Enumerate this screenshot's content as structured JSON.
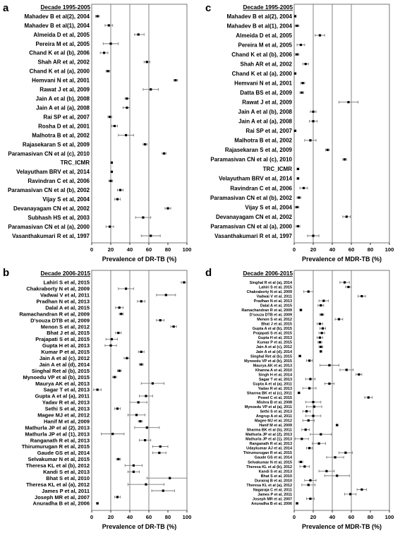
{
  "figure": {
    "panels": [
      {
        "letter": "a",
        "decade": "Decade 1995-2005",
        "xlabel": "Prevalence of DR-TB (%)"
      },
      {
        "letter": "b",
        "decade": "Decade 2006-2015",
        "xlabel": "Prevalence of DR-TB (%)"
      },
      {
        "letter": "c",
        "decade": "Decade 1995-2005",
        "xlabel": "Prevalence of MDR-TB (%)"
      },
      {
        "letter": "d",
        "decade": "Decade 2006-2015",
        "xlabel": "Prevalence of MDR-TB (%)"
      }
    ]
  },
  "chart_data": [
    {
      "type": "scatter",
      "panel": "a",
      "title": "Decade 1995-2005",
      "xlabel": "Prevalence of DR-TB (%)",
      "xlim": [
        0,
        100
      ],
      "xticks": [
        0,
        20,
        40,
        60,
        80,
        100
      ],
      "reference_lines": [
        20,
        40,
        60
      ],
      "categories": [
        "Mahadev B et al(2), 2004",
        "Mahadev B et al(1), 2004",
        "Almeida D et al, 2005",
        "Pereira M et al, 2005",
        "Chand K et al (b), 2006",
        "Shah AR et al, 2002",
        "Chand K et al (a), 2000",
        "Hemvani N et al, 2001",
        "Rawat J et al, 2009",
        "Jain A et al (b), 2008",
        "Jain A et al (a), 2008",
        "Rai SP et al, 2007",
        "Rosha D et al, 2001",
        "Malhotra B et al, 2002",
        "Rajasekaran S et al, 2009",
        "Paramasivan CN et al (c), 2010",
        "TRC_ICMR",
        "Velayutham BRV et al, 2014",
        "Ravindran C et al, 2006",
        "Paramasivan CN et al (b), 2002",
        "Vijay S et al, 2004",
        "Devanayagam CN et al, 2002",
        "Subhash HS et al, 2003",
        "Paramasivan CN et al (a), 2000",
        "Vasanthakumari R et al, 1997"
      ],
      "values": [
        6,
        18,
        49,
        20,
        13,
        58,
        17,
        88,
        62,
        37,
        37,
        19,
        24,
        36,
        56,
        76,
        21,
        21,
        20,
        30,
        27,
        80,
        54,
        19,
        62
      ],
      "ci_low": [
        4,
        14,
        45,
        12,
        9,
        55,
        15,
        86,
        54,
        35,
        33,
        17,
        21,
        28,
        54,
        74,
        20,
        20,
        18,
        27,
        24,
        77,
        46,
        15,
        52
      ],
      "ci_high": [
        8,
        22,
        55,
        28,
        17,
        61,
        19,
        90,
        70,
        40,
        40,
        21,
        27,
        44,
        58,
        78,
        22,
        22,
        22,
        33,
        30,
        83,
        62,
        23,
        72
      ]
    },
    {
      "type": "scatter",
      "panel": "b",
      "title": "Decade 2006-2015",
      "xlabel": "Prevalence of DR-TB (%)",
      "xlim": [
        0,
        100
      ],
      "xticks": [
        0,
        20,
        40,
        60,
        80,
        100
      ],
      "reference_lines": [
        20,
        40,
        60
      ],
      "categories": [
        "Lahiri S et al, 2015",
        "Chakraborty N et al, 2009",
        "Vadwai V et al, 2011",
        "Pradhan N et al, 2013",
        "Dalal A et al, 2015",
        "Ramachandran R et al, 2009",
        "D'souza DTB et al, 2009",
        "Menon S et al, 2012",
        "Bhat J et al, 2015",
        "Prajapati S et al, 2015",
        "Gupta H et al, 2013",
        "Kumar P et al, 2015",
        "Jain A et al (c), 2012",
        "Jain A et al (d), 2014",
        "Singhal Ret al (b), 2015",
        "Mynoedu VP et al (b), 2015",
        "Maurya AK et al, 2013",
        "Sagar T et al, 2013",
        "Gupta A et al (a), 2011",
        "Yadav R et al, 2013",
        "Sethi S et al, 2013",
        "Magee MJ et al, 2012",
        "Hanif M et al, 2009",
        "Mathurla JP et al (2), 2013",
        "Mathurla JP et al (1), 2013",
        "Ranganath R et al, 2013",
        "Thirumurugan R et al, 2015",
        "Gaude GS et al, 2014",
        "Selvakumar N et al, 2015",
        "Theresa KL et al (b), 2012",
        "Kandi S et al, 2013",
        "Bhat S et al, 2010",
        "Theresa KL et al (a), 2012",
        "James P et al, 2011",
        "Joseph MR et al, 2007",
        "Anuradha B et al, 2006"
      ],
      "values": [
        97,
        36,
        78,
        52,
        29,
        31,
        72,
        86,
        28,
        21,
        20,
        52,
        37,
        52,
        29,
        24,
        64,
        6,
        57,
        49,
        27,
        47,
        51,
        58,
        22,
        56,
        72,
        71,
        28,
        44,
        44,
        82,
        57,
        75,
        27,
        6
      ],
      "ci_low": [
        94,
        28,
        68,
        48,
        25,
        29,
        68,
        83,
        25,
        15,
        14,
        49,
        34,
        50,
        27,
        22,
        52,
        2,
        50,
        40,
        24,
        38,
        49,
        45,
        10,
        50,
        64,
        64,
        26,
        35,
        38,
        58,
        38,
        63,
        24,
        5
      ],
      "ci_high": [
        100,
        44,
        88,
        56,
        33,
        33,
        76,
        89,
        31,
        27,
        26,
        55,
        40,
        54,
        31,
        26,
        76,
        10,
        64,
        58,
        30,
        56,
        53,
        71,
        34,
        62,
        80,
        78,
        30,
        53,
        50,
        100,
        76,
        87,
        30,
        7
      ]
    },
    {
      "type": "scatter",
      "panel": "c",
      "title": "Decade 1995-2005",
      "xlabel": "Prevalence of MDR-TB (%)",
      "xlim": [
        0,
        100
      ],
      "xticks": [
        0,
        20,
        40,
        60,
        80,
        100
      ],
      "reference_lines": [
        20,
        40,
        60
      ],
      "categories": [
        "Mahadev B et al(2), 2004",
        "Mahadev B et al(1), 2004",
        "Almeida D et al, 2005",
        "Pereira M et al, 2005",
        "Chand K et al (b), 2006",
        "Shah AR et al, 2002",
        "Chand K et al (a), 2000",
        "Hemvani N et al, 2001",
        "Datta BS et al, 2009",
        "Rawat J et al, 2009",
        "Jain A et al (b), 2008",
        "Jain A et al (a), 2008",
        "Rai SP et al, 2007",
        "Malhotra B et al, 2002",
        "Rajasekaran S et al, 2009",
        "Paramasivan CN et al (c), 2010",
        "TRC_ICMR",
        "Velayutham BRV et al, 2014",
        "Ravindran C et al, 2006",
        "Paramasivan CN et al (b), 2002",
        "Vijay S et al, 2004",
        "Devanayagam CN et al, 2002",
        "Paramasivan CN et al (a), 2000",
        "Vasanthakumari R et al, 1997"
      ],
      "values": [
        1,
        3,
        27,
        7,
        3,
        12,
        1,
        9,
        8,
        57,
        20,
        20,
        1,
        17,
        35,
        53,
        4,
        4,
        10,
        5,
        3,
        55,
        4,
        20
      ],
      "ci_low": [
        0,
        1,
        22,
        3,
        1,
        9,
        0,
        7,
        6,
        47,
        17,
        16,
        0,
        11,
        33,
        51,
        3,
        3,
        6,
        3,
        1,
        51,
        2,
        14
      ],
      "ci_high": [
        2,
        5,
        32,
        11,
        5,
        15,
        2,
        11,
        10,
        67,
        23,
        24,
        2,
        23,
        37,
        55,
        5,
        5,
        14,
        7,
        5,
        59,
        6,
        26
      ]
    },
    {
      "type": "scatter",
      "panel": "d",
      "title": "Decade 2006-2015",
      "xlabel": "Prevalence of MDR-TB (%)",
      "xlim": [
        0,
        100
      ],
      "xticks": [
        0,
        20,
        40,
        60,
        80,
        100
      ],
      "reference_lines": [
        20,
        40,
        60
      ],
      "categories": [
        "Singhal R et al (a), 2014",
        "Lahiri S et al, 2015",
        "Chakraborty N et al, 2009",
        "Vadwai V et al, 2011",
        "Pradhan N et al, 2013",
        "Dalal A et al, 2015",
        "Ramachandran R et al, 2009",
        "D'souza DTB et al, 2009",
        "Menon S et al, 2012",
        "Bhat J et al, 2015",
        "Gupta A et al (b), 2015",
        "Prajapati S et al, 2015",
        "Gupta H et al, 2013",
        "Kumar P et al, 2015",
        "Jain A et al (c), 2012",
        "Jain A et al (d), 2014",
        "Singhal Ret al (b), 2015",
        "Mynoedu VP et al (b), 2015",
        "Maurya AK et al, 2013",
        "Khanna A et al, 2010",
        "Singh H et al, 2014",
        "Sagar T et al, 2013",
        "Gupta A et al (a), 2011",
        "Yadav R et al, 2013",
        "Sharma BK et al (c), 2011",
        "Powel C et al, 2015",
        "Mishra B et al, 2008",
        "Mynoedu VP et al (a), 2011",
        "Sethi S et al, 2013",
        "Angrup A et al, 2011",
        "Magee MJ et al, 2012",
        "Hanif M et al, 2009",
        "Sharma BK et al (b), 2011",
        "Mathurla JP et al (2), 2013",
        "Mathurla JP et al (1), 2013",
        "Ranganath R et al, 2013",
        "Udaykumar AJ et al, 2014",
        "Thirumurugan R et al, 2015",
        "Gaude GS et al, 2014",
        "Selvakumar N et al, 2015",
        "Theresa KL et al (b), 2012",
        "Kandi S et al, 2013",
        "Bhat S et al, 2010",
        "Durairaj B et al, 2010",
        "Theresa KL et al (a), 2012",
        "Nagaraja C et al, 2011",
        "James P et al, 2011",
        "Joseph MR et al, 2007",
        "Anuradha B et al, 2006"
      ],
      "values": [
        53,
        57,
        15,
        71,
        31,
        28,
        7,
        29,
        47,
        27,
        30,
        29,
        27,
        27,
        28,
        28,
        6,
        16,
        37,
        55,
        68,
        17,
        37,
        16,
        5,
        78,
        20,
        21,
        13,
        20,
        15,
        45,
        12,
        28,
        8,
        26,
        16,
        54,
        43,
        7,
        11,
        34,
        45,
        17,
        15,
        71,
        59,
        17,
        3
      ],
      "ci_low": [
        48,
        54,
        10,
        67,
        26,
        25,
        6,
        27,
        43,
        24,
        27,
        26,
        24,
        25,
        26,
        27,
        5,
        13,
        27,
        48,
        65,
        12,
        32,
        9,
        4,
        74,
        12,
        13,
        9,
        12,
        9,
        44,
        8,
        17,
        1,
        19,
        13,
        47,
        34,
        5,
        6,
        26,
        32,
        11,
        8,
        66,
        53,
        13,
        2
      ],
      "ci_high": [
        58,
        60,
        20,
        75,
        36,
        31,
        8,
        31,
        51,
        30,
        33,
        32,
        30,
        29,
        30,
        29,
        7,
        19,
        47,
        62,
        71,
        22,
        42,
        23,
        6,
        82,
        28,
        29,
        17,
        28,
        21,
        46,
        16,
        39,
        15,
        33,
        19,
        61,
        52,
        9,
        16,
        42,
        58,
        23,
        22,
        76,
        65,
        21,
        4
      ]
    }
  ]
}
